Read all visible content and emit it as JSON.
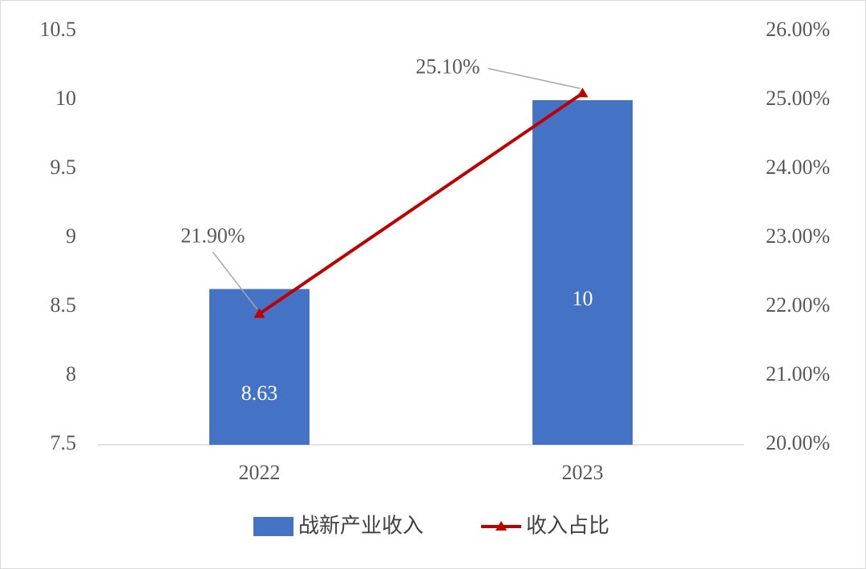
{
  "chart_data": {
    "type": "bar",
    "categories": [
      "2022",
      "2023"
    ],
    "series": [
      {
        "name": "战新产业收入",
        "type": "bar",
        "color": "#4472c4",
        "values": [
          8.63,
          10
        ]
      },
      {
        "name": "收入占比",
        "type": "line",
        "axis": "y2",
        "color": "#c00000",
        "values": [
          21.9,
          25.1
        ],
        "value_labels": [
          "21.90%",
          "25.10%"
        ]
      }
    ],
    "ylim": [
      7.5,
      10.5
    ],
    "yticks": [
      7.5,
      8,
      8.5,
      9,
      9.5,
      10,
      10.5
    ],
    "y2lim": [
      20,
      26
    ],
    "y2ticks": [
      {
        "value": 20,
        "label": "20.00%"
      },
      {
        "value": 21,
        "label": "21.00%"
      },
      {
        "value": 22,
        "label": "22.00%"
      },
      {
        "value": 23,
        "label": "23.00%"
      },
      {
        "value": 24,
        "label": "24.00%"
      },
      {
        "value": 25,
        "label": "25.00%"
      },
      {
        "value": 26,
        "label": "26.00%"
      }
    ],
    "grid": false,
    "legend": "bottom"
  }
}
